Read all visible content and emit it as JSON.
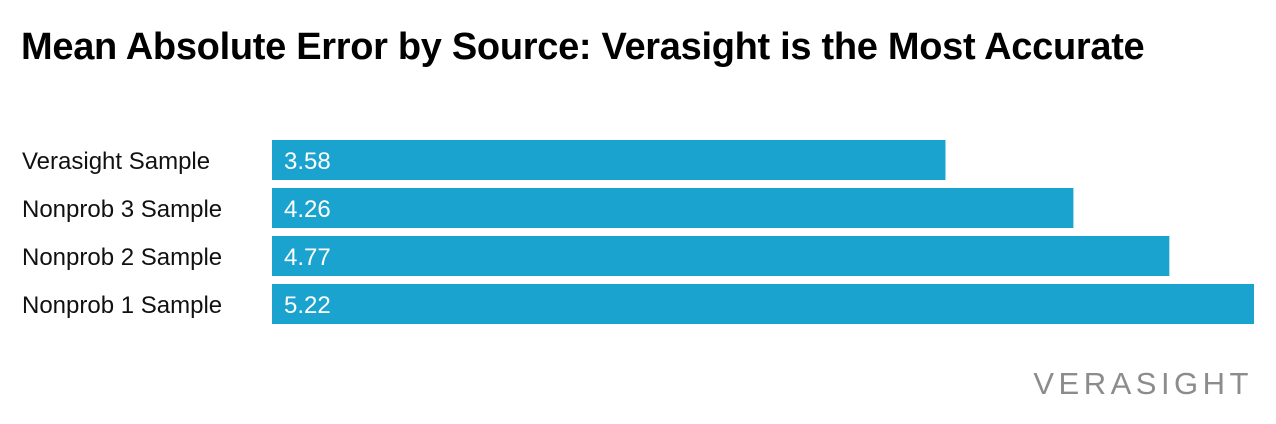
{
  "chart_data": {
    "type": "bar",
    "orientation": "horizontal",
    "title": "Mean Absolute Error by Source: Verasight is the Most Accurate",
    "categories": [
      "Verasight Sample",
      "Nonprob 3 Sample",
      "Nonprob 2 Sample",
      "Nonprob 1 Sample"
    ],
    "values": [
      3.58,
      4.26,
      4.77,
      5.22
    ],
    "data_labels": [
      "3.58",
      "4.26",
      "4.77",
      "5.22"
    ],
    "xlim": [
      0,
      5.22
    ],
    "grid": false,
    "legend": "none",
    "bar_color": "#1aa3cf",
    "label_color": "#ffffff"
  },
  "branding": {
    "logo_text": "VERASIGHT",
    "color": "#8c8c8c"
  }
}
